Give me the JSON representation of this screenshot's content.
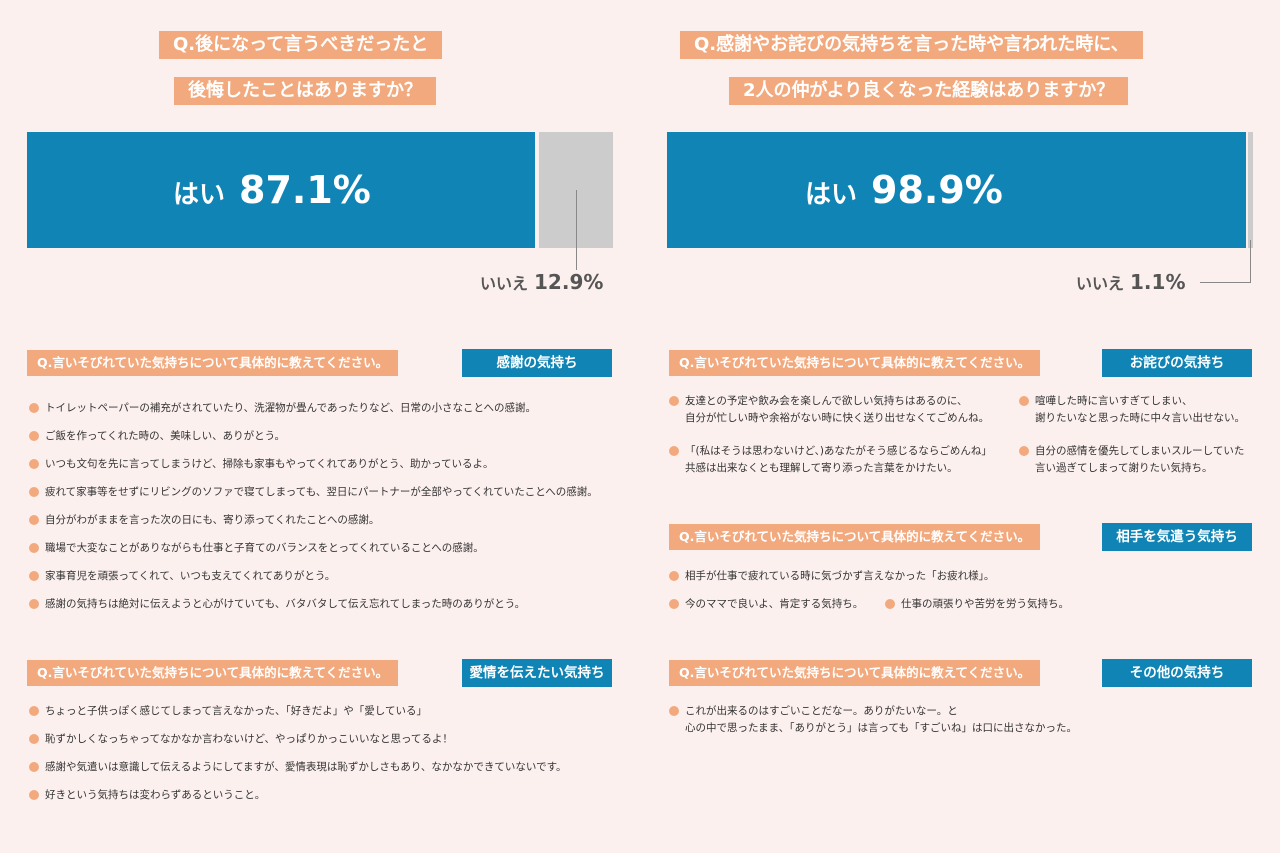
{
  "left_survey": {
    "question_lines": [
      "Q.後になって言うべきだったと",
      "後悔したことはありますか？"
    ],
    "yes_label": "はい",
    "yes_value": "87.1%",
    "no_label": "いいえ",
    "no_value": "12.9%"
  },
  "right_survey": {
    "question_lines": [
      "Q.感謝やお詫びの気持ちを言った時や言われた時に、",
      "2人の仲がより良くなった経験はありますか？"
    ],
    "yes_label": "はい",
    "yes_value": "98.9%",
    "no_label": "いいえ",
    "no_value": "1.1%"
  },
  "chart_data": [
    {
      "type": "bar",
      "title": "Q.後になって言うべきだったと後悔したことはありますか？",
      "categories": [
        "はい",
        "いいえ"
      ],
      "values": [
        87.1,
        12.9
      ],
      "unit": "%",
      "stacked": true,
      "colors": [
        "#0f84b5",
        "#cccccc"
      ]
    },
    {
      "type": "bar",
      "title": "Q.感謝やお詫びの気持ちを言った時や言われた時に、2人の仲がより良くなった経験はありますか？",
      "categories": [
        "はい",
        "いいえ"
      ],
      "values": [
        98.9,
        1.1
      ],
      "unit": "%",
      "stacked": true,
      "colors": [
        "#0f84b5",
        "#cccccc"
      ]
    }
  ],
  "sections": {
    "gratitude": {
      "question": "Q.言いそびれていた気持ちについて具体的に教えてください。",
      "category": "感謝の気持ち",
      "items": [
        "トイレットペーパーの補充がされていたり、洗濯物が畳んであったりなど、日常の小さなことへの感謝。",
        "ご飯を作ってくれた時の、美味しい、ありがとう。",
        "いつも文句を先に言ってしまうけど、掃除も家事もやってくれてありがとう、助かっているよ。",
        "疲れて家事等をせずにリビングのソファで寝てしまっても、翌日にパートナーが全部やってくれていたことへの感謝。",
        "自分がわがままを言った次の日にも、寄り添ってくれたことへの感謝。",
        "職場で大変なことがありながらも仕事と子育てのバランスをとってくれていることへの感謝。",
        "家事育児を頑張ってくれて、いつも支えてくれてありがとう。",
        "感謝の気持ちは絶対に伝えようと心がけていても、バタバタして伝え忘れてしまった時のありがとう。"
      ]
    },
    "love": {
      "question": "Q.言いそびれていた気持ちについて具体的に教えてください。",
      "category": "愛情を伝えたい気持ち",
      "items": [
        "ちょっと子供っぽく感じてしまって言えなかった、「好きだよ」や「愛している」",
        "恥ずかしくなっちゃってなかなか言わないけど、やっぱりかっこいいなと思ってるよ！",
        "感謝や気遣いは意識して伝えるようにしてますが、愛情表現は恥ずかしさもあり、なかなかできていないです。",
        "好きという気持ちは変わらずあるということ。"
      ]
    },
    "apology": {
      "question": "Q.言いそびれていた気持ちについて具体的に教えてください。",
      "category": "お詫びの気持ち",
      "items": [
        [
          "友達との予定や飲み会を楽しんで欲しい気持ちはあるのに、",
          "自分が忙しい時や余裕がない時に快く送り出せなくてごめんね。"
        ],
        [
          "喧嘩した時に言いすぎてしまい、",
          "謝りたいなと思った時に中々言い出せない。"
        ],
        [
          "「(私はそうは思わないけど、)あなたがそう感じるならごめんね」",
          "共感は出来なくとも理解して寄り添った言葉をかけたい。"
        ],
        [
          "自分の感情を優先してしまいスルーしていた",
          "言い過ぎてしまって謝りたい気持ち。"
        ]
      ]
    },
    "consideration": {
      "question": "Q.言いそびれていた気持ちについて具体的に教えてください。",
      "category": "相手を気遣う気持ち",
      "items": [
        "相手が仕事で疲れている時に気づかず言えなかった「お疲れ様」。",
        "今のママで良いよ、肯定する気持ち。",
        "仕事の頑張りや苦労を労う気持ち。"
      ]
    },
    "other": {
      "question": "Q.言いそびれていた気持ちについて具体的に教えてください。",
      "category": "その他の気持ち",
      "items": [
        [
          "これが出来るのはすごいことだなー。ありがたいなー。と",
          "心の中で思ったまま、「ありがとう」は言っても「すごいね」は口に出さなかった。"
        ]
      ]
    }
  }
}
